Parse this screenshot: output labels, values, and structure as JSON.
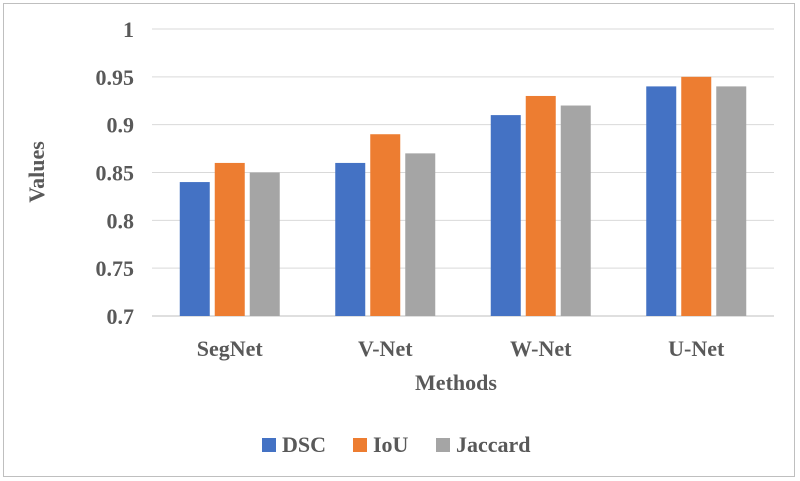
{
  "chart_data": {
    "type": "bar",
    "title": "",
    "xlabel": "Methods",
    "ylabel": "Values",
    "categories": [
      "SegNet",
      "V-Net",
      "W-Net",
      "U-Net"
    ],
    "series": [
      {
        "name": "DSC",
        "color": "#4472c4",
        "values": [
          0.84,
          0.86,
          0.91,
          0.94
        ]
      },
      {
        "name": "IoU",
        "color": "#ed7d31",
        "values": [
          0.86,
          0.89,
          0.93,
          0.95
        ]
      },
      {
        "name": "Jaccard",
        "color": "#a5a5a5",
        "values": [
          0.85,
          0.87,
          0.92,
          0.94
        ]
      }
    ],
    "ylim": [
      0.7,
      1.0
    ],
    "yticks": [
      "0.7",
      "0.75",
      "0.8",
      "0.85",
      "0.9",
      "0.95",
      "1"
    ],
    "grid": true,
    "legend_position": "bottom"
  }
}
